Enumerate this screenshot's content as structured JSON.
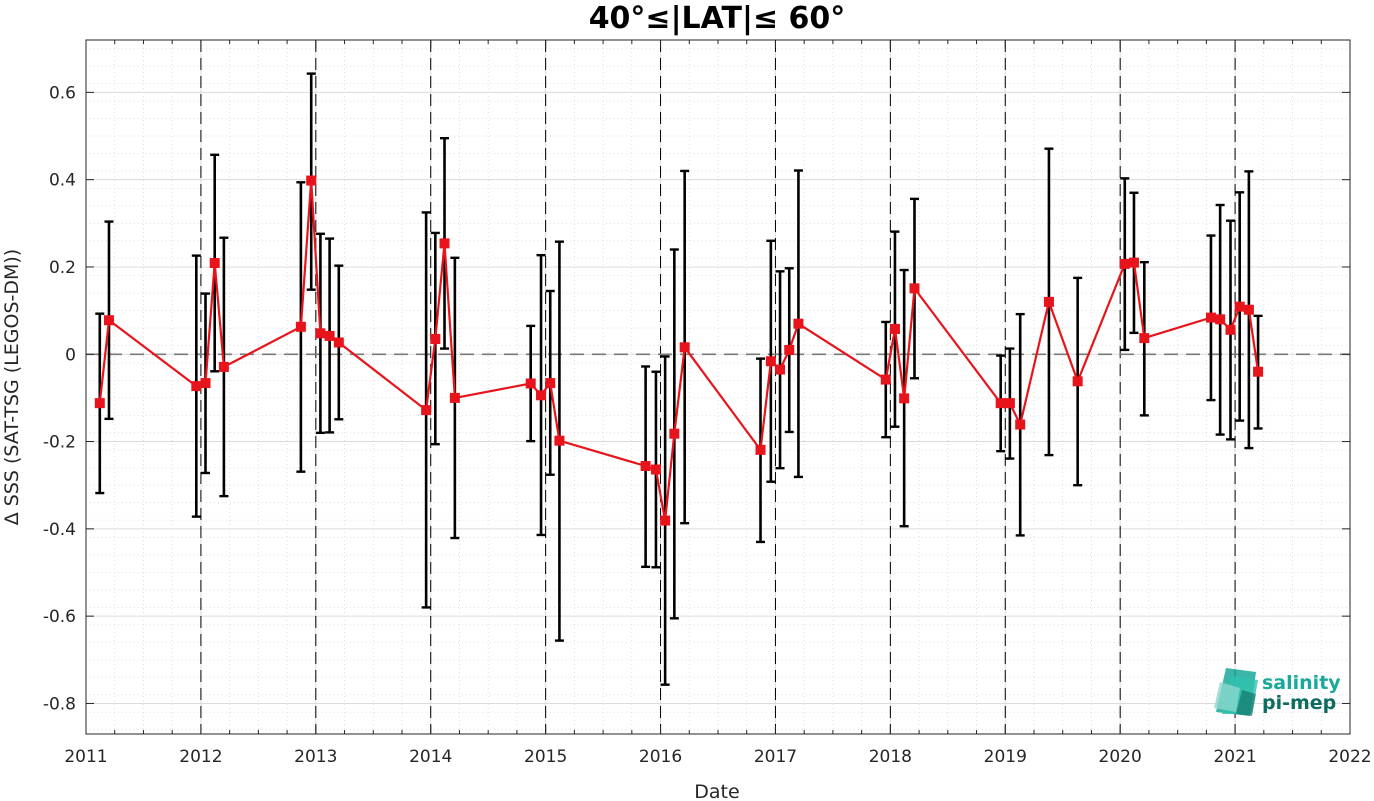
{
  "chart_data": {
    "type": "line",
    "title": "40°≤|LAT|≤ 60°",
    "xlabel": "Date",
    "ylabel": "Δ SSS (SAT-TSG (LEGOS-DM))",
    "xlim": [
      2011,
      2022
    ],
    "ylim": [
      -0.87,
      0.72
    ],
    "x_ticks": [
      "2011",
      "2012",
      "2013",
      "2014",
      "2015",
      "2016",
      "2017",
      "2018",
      "2019",
      "2020",
      "2021",
      "2022"
    ],
    "y_ticks": [
      "-0.8",
      "-0.6",
      "-0.4",
      "-0.2",
      "0",
      "0.2",
      "0.4",
      "0.6"
    ],
    "grid": true,
    "reference_line": 0,
    "year_markers": [
      2012,
      2013,
      2014,
      2015,
      2016,
      2017,
      2018,
      2019,
      2020,
      2021
    ],
    "series": [
      {
        "color": "#e8141c",
        "marker": "square",
        "x": [
          2011.12,
          2011.2,
          2011.96,
          2012.04,
          2012.12,
          2012.2,
          2012.87,
          2012.96,
          2013.04,
          2013.12,
          2013.2,
          2013.96,
          2014.04,
          2014.12,
          2014.21,
          2014.87,
          2014.96,
          2015.04,
          2015.12,
          2015.87,
          2015.96,
          2016.04,
          2016.12,
          2016.21,
          2016.87,
          2016.96,
          2017.04,
          2017.12,
          2017.2,
          2017.96,
          2018.04,
          2018.12,
          2018.21,
          2018.96,
          2019.04,
          2019.13,
          2019.38,
          2019.63,
          2020.04,
          2020.12,
          2020.21,
          2020.79,
          2020.87,
          2020.96,
          2021.04,
          2021.12,
          2021.2
        ],
        "y": [
          -0.112,
          0.078,
          -0.073,
          -0.066,
          0.209,
          -0.029,
          0.063,
          0.398,
          0.048,
          0.042,
          0.027,
          -0.128,
          0.035,
          0.254,
          -0.1,
          -0.067,
          -0.094,
          -0.066,
          -0.198,
          -0.256,
          -0.264,
          -0.381,
          -0.182,
          0.016,
          -0.219,
          -0.016,
          -0.035,
          0.01,
          0.07,
          -0.058,
          0.058,
          -0.101,
          0.151,
          -0.112,
          -0.112,
          -0.161,
          0.12,
          -0.062,
          0.207,
          0.21,
          0.037,
          0.084,
          0.08,
          0.056,
          0.109,
          0.102,
          -0.04
        ],
        "y_upper": [
          0.093,
          0.304,
          0.226,
          0.139,
          0.457,
          0.267,
          0.394,
          0.643,
          0.276,
          0.265,
          0.203,
          0.325,
          0.278,
          0.495,
          0.221,
          0.065,
          0.227,
          0.145,
          0.258,
          -0.028,
          -0.04,
          -0.005,
          0.24,
          0.42,
          -0.01,
          0.26,
          0.19,
          0.197,
          0.421,
          0.074,
          0.281,
          0.193,
          0.356,
          -0.003,
          0.013,
          0.092,
          0.471,
          0.175,
          0.403,
          0.37,
          0.211,
          0.272,
          0.342,
          0.306,
          0.371,
          0.419,
          0.088
        ],
        "y_lower": [
          -0.318,
          -0.148,
          -0.372,
          -0.272,
          -0.039,
          -0.325,
          -0.269,
          0.148,
          -0.18,
          -0.179,
          -0.149,
          -0.58,
          -0.206,
          0.013,
          -0.421,
          -0.199,
          -0.414,
          -0.276,
          -0.656,
          -0.487,
          -0.488,
          -0.757,
          -0.605,
          -0.387,
          -0.43,
          -0.292,
          -0.261,
          -0.178,
          -0.281,
          -0.19,
          -0.166,
          -0.394,
          -0.055,
          -0.222,
          -0.239,
          -0.415,
          -0.231,
          -0.3,
          0.01,
          0.049,
          -0.14,
          -0.105,
          -0.184,
          -0.195,
          -0.152,
          -0.215,
          -0.17
        ]
      }
    ]
  },
  "logo": {
    "line1": "salinity",
    "line2": "pi-mep",
    "color1": "#1aa89a",
    "color2": "#0d6b5f"
  }
}
